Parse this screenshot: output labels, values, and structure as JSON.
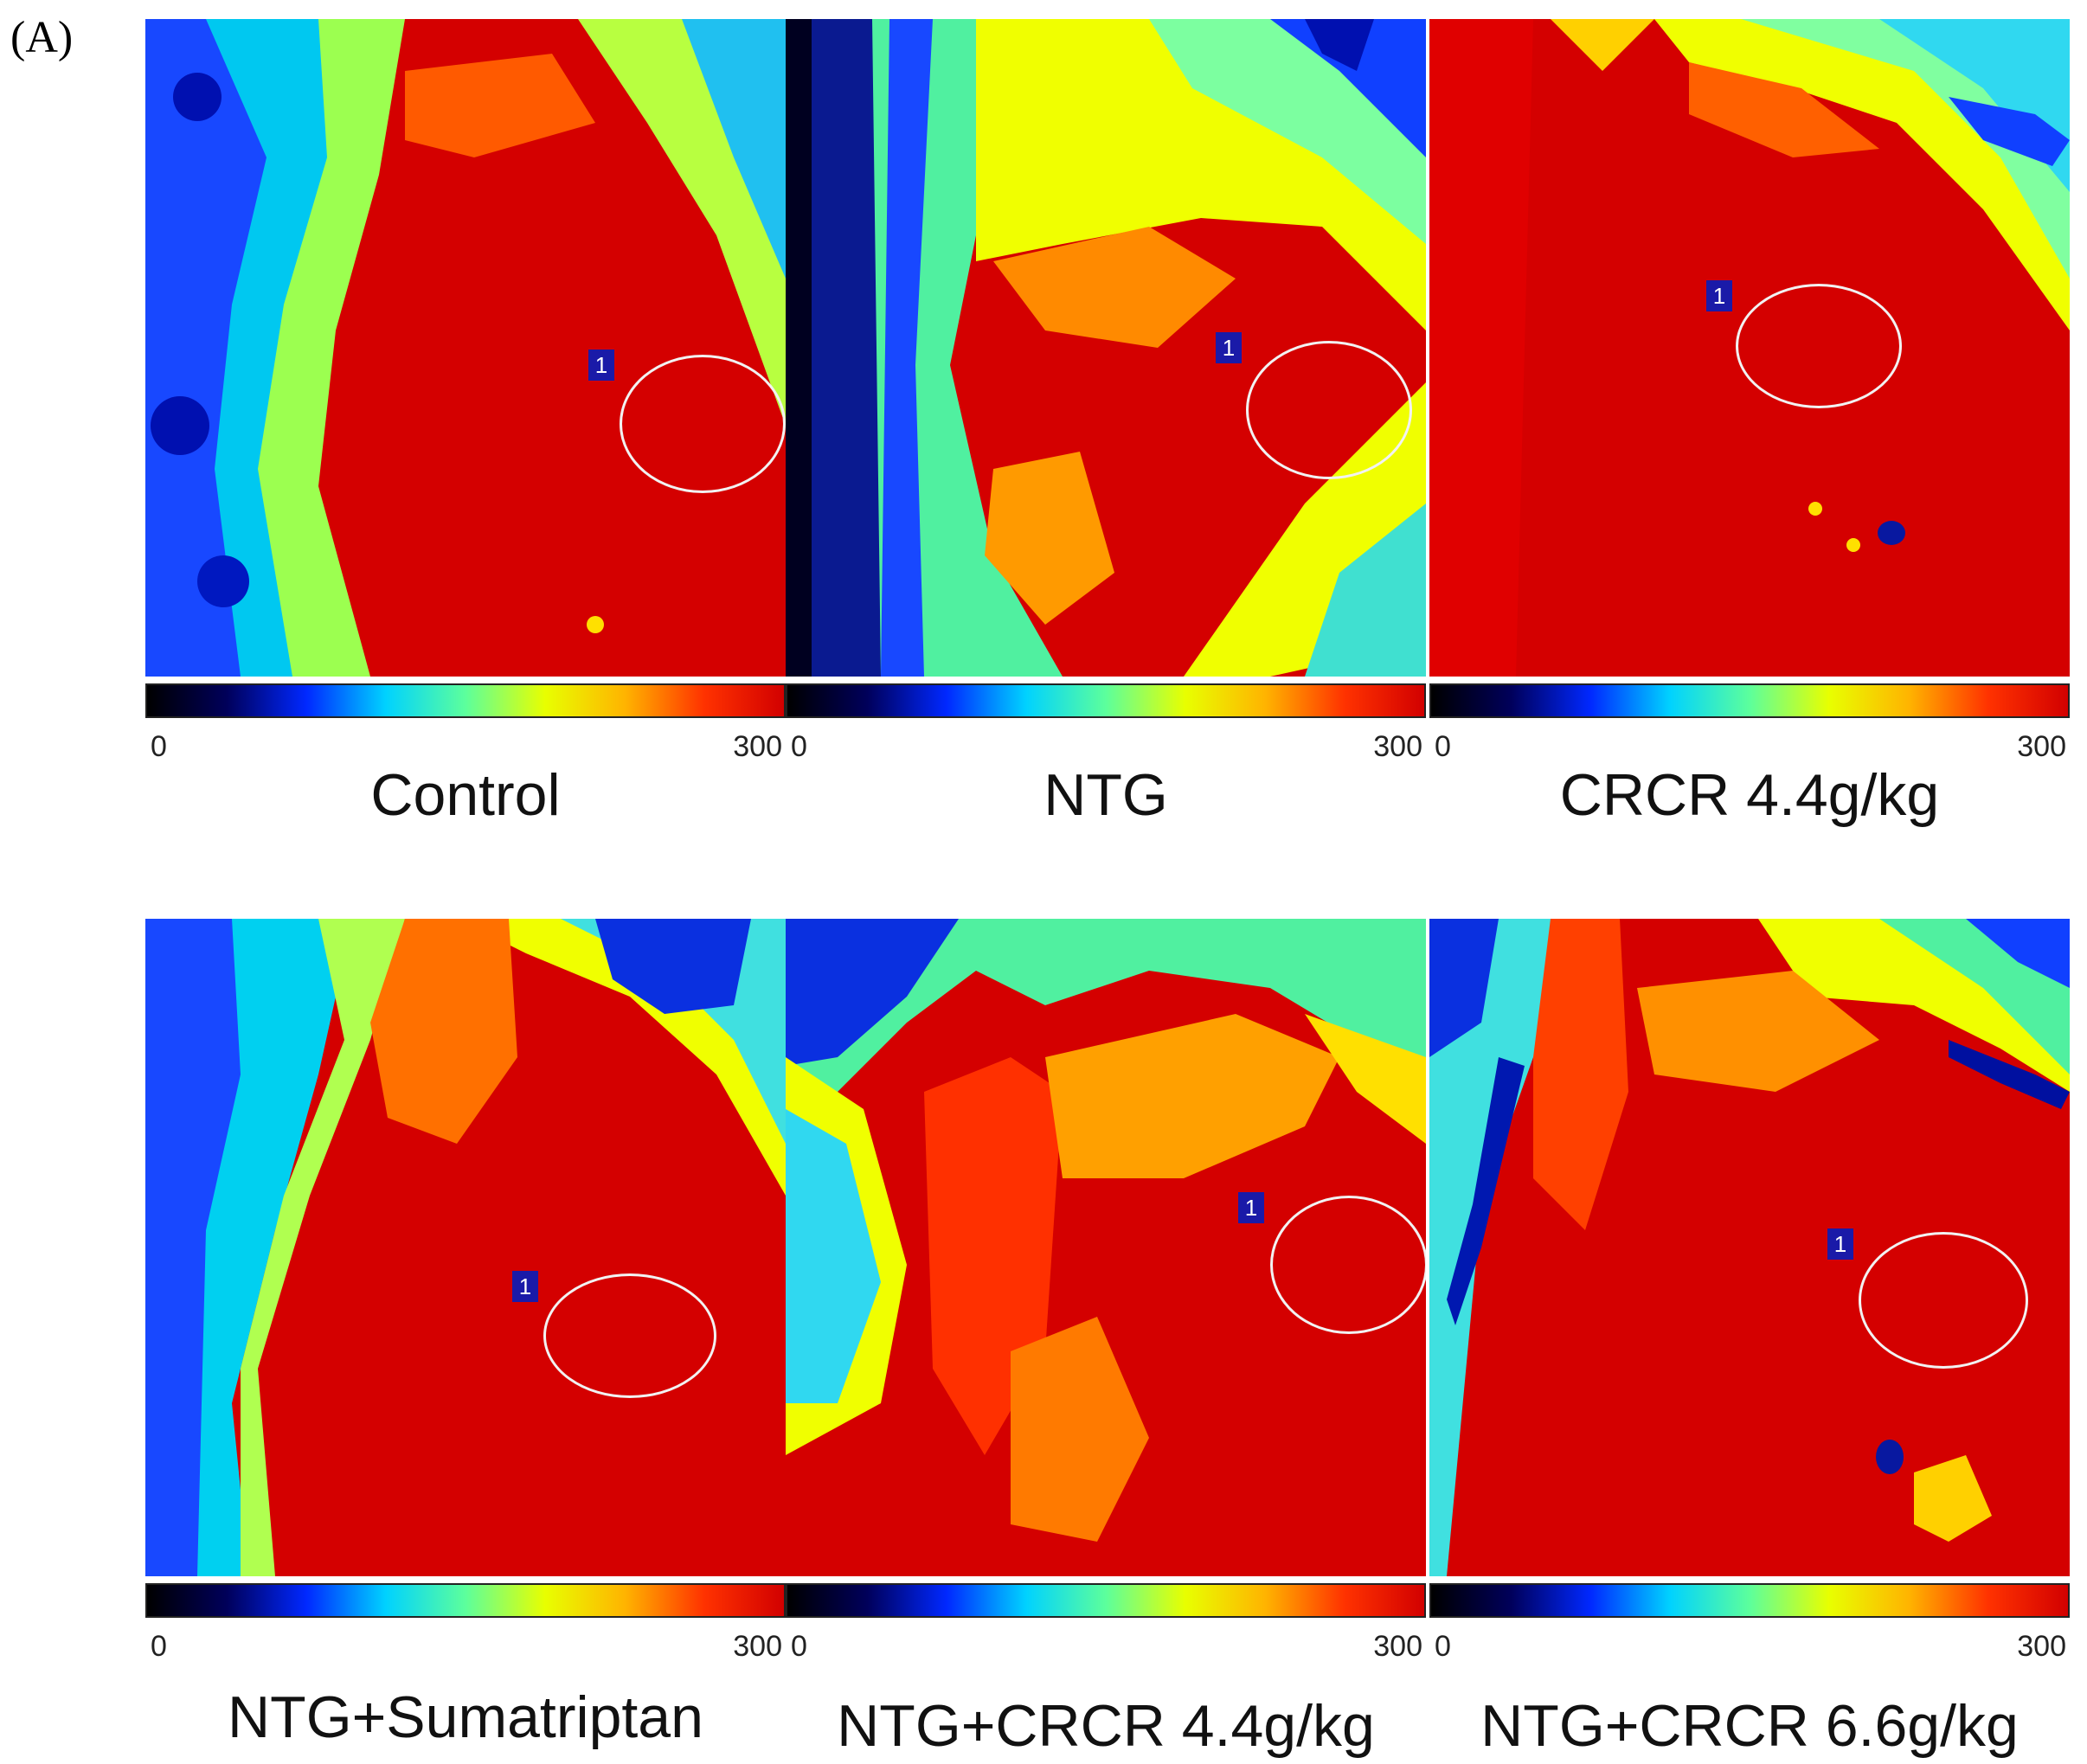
{
  "figure": {
    "panel_label": "(A)"
  },
  "colormap": {
    "stops": [
      "#000000",
      "#00005a",
      "#0028ff",
      "#00d2ff",
      "#5cff9c",
      "#e8ff00",
      "#ffb400",
      "#ff3200",
      "#d20000"
    ],
    "min_label": "0",
    "max_label": "300"
  },
  "panels": [
    {
      "caption": "Control",
      "roi_label": "1"
    },
    {
      "caption": "NTG",
      "roi_label": "1"
    },
    {
      "caption": "CRCR 4.4g/kg",
      "roi_label": "1"
    },
    {
      "caption": "NTG+Sumatriptan",
      "roi_label": "1"
    },
    {
      "caption": "NTG+CRCR 4.4g/kg",
      "roi_label": "1"
    },
    {
      "caption": "NTG+CRCR 6.6g/kg",
      "roi_label": "1"
    }
  ]
}
